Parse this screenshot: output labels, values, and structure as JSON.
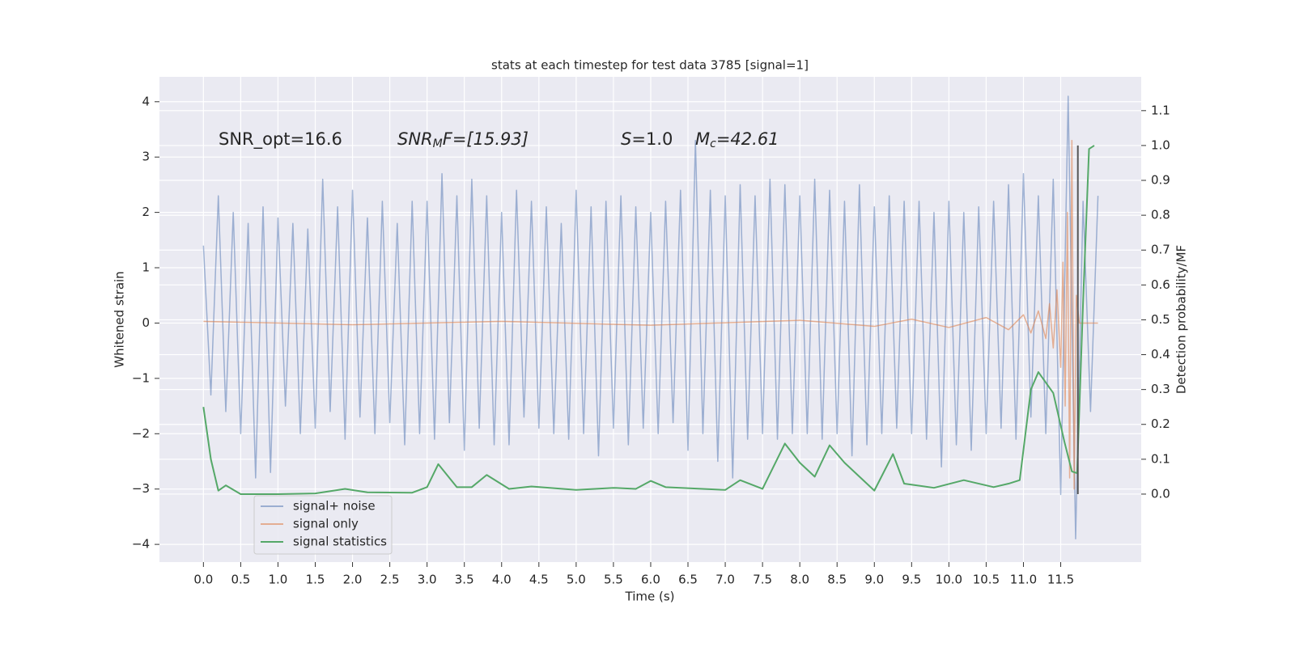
{
  "chart_data": {
    "type": "line",
    "title": "stats at each timestep for test data 3785 [signal=1]",
    "xlabel": "Time (s)",
    "ylabel": "Whitened strain",
    "y2label": "Detection probability/MF",
    "xlim": [
      -0.59,
      12.58
    ],
    "ylim": [
      -4.32,
      4.45
    ],
    "y2lim": [
      -0.195,
      1.197
    ],
    "xticks": [
      {
        "value": 0,
        "label": "0.0"
      },
      0.5,
      {
        "value": 1,
        "label": "1.0"
      },
      1.5,
      {
        "value": 2,
        "label": "2.0"
      },
      2.5,
      {
        "value": 3,
        "label": "3.0"
      },
      3.5,
      {
        "value": 4,
        "label": "4.0"
      },
      4.5,
      {
        "value": 5,
        "label": "5.0"
      },
      5.5,
      {
        "value": 6,
        "label": "6.0"
      },
      6.5,
      {
        "value": 7,
        "label": "7.0"
      },
      7.5,
      {
        "value": 8,
        "label": "8.0"
      },
      8.5,
      {
        "value": 9,
        "label": "9.0"
      },
      9.5,
      {
        "value": 10,
        "label": "10.0"
      },
      10.5,
      {
        "value": 11,
        "label": "11.0"
      },
      11.5
    ],
    "yticks": [
      {
        "value": -4,
        "label": "−4"
      },
      {
        "value": -3,
        "label": "−3"
      },
      {
        "value": -2,
        "label": "−2"
      },
      {
        "value": -1,
        "label": "−1"
      },
      0,
      1,
      2,
      3,
      4
    ],
    "y2ticks": [
      {
        "value": 0,
        "label": "0.0"
      },
      0.1,
      0.2,
      0.3,
      0.4,
      0.5,
      0.6,
      0.7,
      0.8,
      0.9,
      {
        "value": 1,
        "label": "1.0"
      },
      1.1
    ],
    "grid": true,
    "legend": "lower left",
    "annotations": [
      {
        "text": "SNR_opt=16.6"
      },
      {
        "text": "SNR",
        "sub": "M",
        "rest": "F=[15.93]"
      },
      {
        "text": "S",
        "rest": "=1.0"
      },
      {
        "text": "M",
        "sub": "c",
        "rest": "=42.61"
      }
    ],
    "series": [
      {
        "name": "signal+ noise",
        "color": "#4c72b0",
        "x": [
          0.0,
          0.1,
          0.2,
          0.3,
          0.4,
          0.5,
          0.6,
          0.7,
          0.8,
          0.9,
          1.0,
          1.1,
          1.2,
          1.3,
          1.4,
          1.5,
          1.6,
          1.7,
          1.8,
          1.9,
          2.0,
          2.1,
          2.2,
          2.3,
          2.4,
          2.5,
          2.6,
          2.7,
          2.8,
          2.9,
          3.0,
          3.1,
          3.2,
          3.3,
          3.4,
          3.5,
          3.6,
          3.7,
          3.8,
          3.9,
          4.0,
          4.1,
          4.2,
          4.3,
          4.4,
          4.5,
          4.6,
          4.7,
          4.8,
          4.9,
          5.0,
          5.1,
          5.2,
          5.3,
          5.4,
          5.5,
          5.6,
          5.7,
          5.8,
          5.9,
          6.0,
          6.1,
          6.2,
          6.3,
          6.4,
          6.5,
          6.6,
          6.7,
          6.8,
          6.9,
          7.0,
          7.1,
          7.2,
          7.3,
          7.4,
          7.5,
          7.6,
          7.7,
          7.8,
          7.9,
          8.0,
          8.1,
          8.2,
          8.3,
          8.4,
          8.5,
          8.6,
          8.7,
          8.8,
          8.9,
          9.0,
          9.1,
          9.2,
          9.3,
          9.4,
          9.5,
          9.6,
          9.7,
          9.8,
          9.9,
          10.0,
          10.1,
          10.2,
          10.3,
          10.4,
          10.5,
          10.6,
          10.7,
          10.8,
          10.9,
          11.0,
          11.1,
          11.2,
          11.3,
          11.4,
          11.5,
          11.6,
          11.7,
          11.8,
          11.9,
          12.0
        ],
        "values": [
          1.4,
          -1.3,
          2.3,
          -1.6,
          2.0,
          -2.0,
          1.8,
          -2.8,
          2.1,
          -2.7,
          1.9,
          -1.5,
          1.8,
          -2.0,
          1.7,
          -1.9,
          2.6,
          -1.6,
          2.1,
          -2.1,
          2.4,
          -1.7,
          1.9,
          -2.0,
          2.2,
          -1.8,
          1.8,
          -2.2,
          2.2,
          -2.0,
          2.2,
          -2.1,
          2.7,
          -1.8,
          2.3,
          -2.3,
          2.6,
          -1.9,
          2.3,
          -2.2,
          2.0,
          -2.2,
          2.4,
          -1.7,
          2.2,
          -1.9,
          2.1,
          -2.0,
          1.8,
          -2.1,
          2.4,
          -2.0,
          2.1,
          -2.4,
          2.2,
          -1.9,
          2.3,
          -2.2,
          2.1,
          -1.9,
          2.0,
          -2.0,
          2.2,
          -1.8,
          2.4,
          -2.3,
          3.3,
          -2.0,
          2.4,
          -2.5,
          2.3,
          -2.8,
          2.5,
          -2.1,
          2.3,
          -2.0,
          2.6,
          -2.1,
          2.5,
          -2.0,
          2.3,
          -2.0,
          2.6,
          -2.1,
          2.4,
          -2.0,
          2.2,
          -2.4,
          2.5,
          -2.2,
          2.1,
          -2.0,
          2.3,
          -1.9,
          2.2,
          -2.0,
          2.2,
          -2.1,
          2.0,
          -2.6,
          2.2,
          -2.2,
          2.0,
          -2.3,
          2.1,
          -2.0,
          2.2,
          -1.9,
          2.5,
          -2.1,
          2.7,
          -1.7,
          2.3,
          -2.0,
          2.6,
          -3.1,
          4.1,
          -3.9,
          2.2,
          -1.6,
          2.3
        ]
      },
      {
        "name": "signal only",
        "color": "#dd8452",
        "x": [
          0,
          2,
          4,
          6,
          8,
          9,
          9.5,
          10,
          10.5,
          10.8,
          11.0,
          11.1,
          11.2,
          11.3,
          11.35,
          11.4,
          11.45,
          11.5,
          11.53,
          11.56,
          11.59,
          11.62,
          11.65,
          11.68,
          11.71,
          11.75,
          12.0
        ],
        "values": [
          0.03,
          -0.03,
          0.03,
          -0.04,
          0.05,
          -0.06,
          0.07,
          -0.08,
          0.1,
          -0.12,
          0.15,
          -0.18,
          0.22,
          -0.28,
          0.35,
          -0.45,
          0.6,
          -0.8,
          1.1,
          -1.5,
          2.0,
          -2.8,
          3.3,
          -3.0,
          0.5,
          0.0,
          0.0
        ]
      },
      {
        "name": "signal statistics",
        "color": "#55a868",
        "axis": "y2",
        "x": [
          0,
          0.1,
          0.2,
          0.3,
          0.5,
          1.0,
          1.5,
          1.9,
          2.2,
          2.8,
          3.0,
          3.15,
          3.4,
          3.6,
          3.8,
          4.1,
          4.4,
          5.0,
          5.5,
          5.8,
          6.0,
          6.2,
          7.0,
          7.2,
          7.5,
          7.8,
          8.0,
          8.2,
          8.4,
          8.6,
          9.0,
          9.25,
          9.4,
          9.8,
          10.2,
          10.6,
          10.8,
          10.95,
          11.1,
          11.2,
          11.4,
          11.55,
          11.65,
          11.72,
          11.8,
          11.88,
          11.95
        ],
        "values": [
          0.25,
          0.1,
          0.01,
          0.025,
          0.0,
          0.0,
          0.002,
          0.015,
          0.005,
          0.004,
          0.02,
          0.086,
          0.02,
          0.02,
          0.055,
          0.015,
          0.022,
          0.012,
          0.018,
          0.015,
          0.038,
          0.02,
          0.012,
          0.04,
          0.015,
          0.145,
          0.09,
          0.05,
          0.14,
          0.09,
          0.01,
          0.115,
          0.03,
          0.018,
          0.04,
          0.02,
          0.03,
          0.04,
          0.3,
          0.35,
          0.29,
          0.15,
          0.065,
          0.06,
          0.55,
          0.99,
          1.0
        ]
      }
    ],
    "vline": {
      "x": 11.73,
      "y2": [
        0,
        1.0
      ],
      "color": "#555555"
    }
  }
}
